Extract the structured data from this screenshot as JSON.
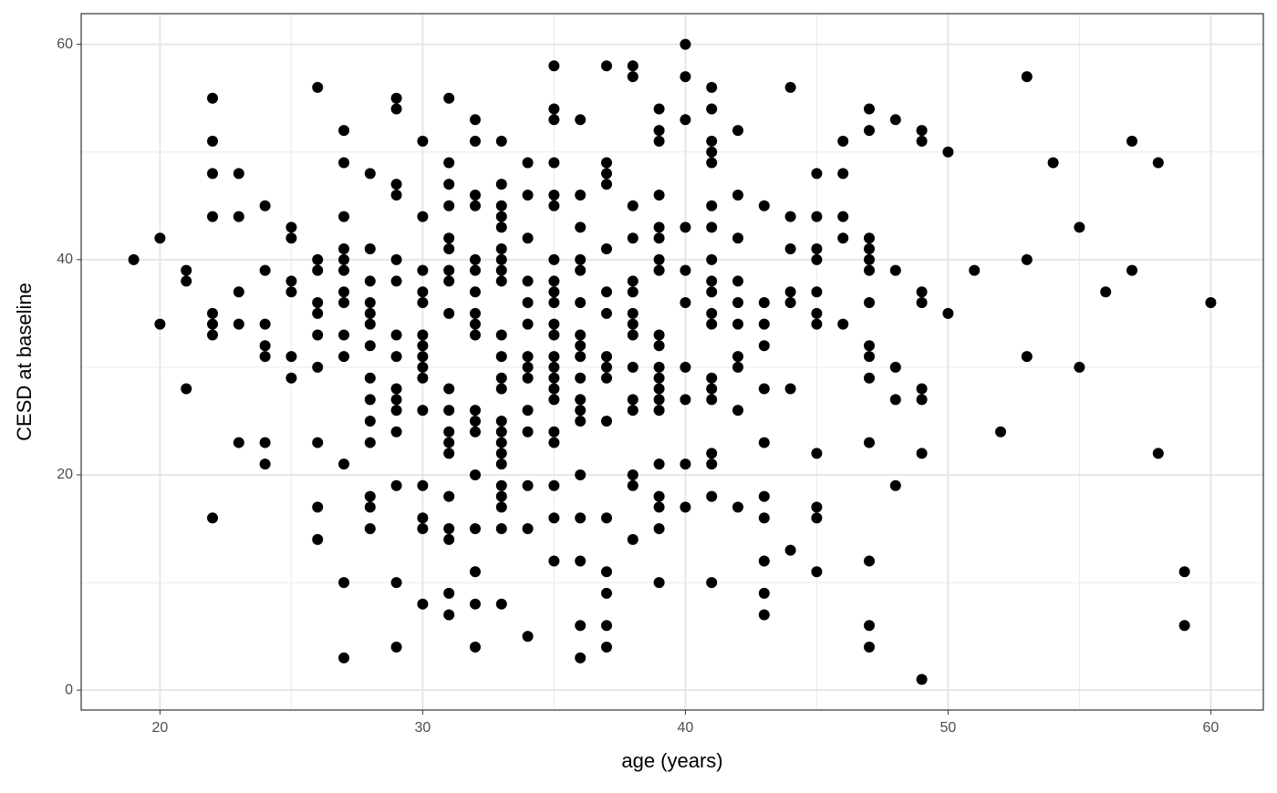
{
  "chart_data": {
    "type": "scatter",
    "x_label": "age (years)",
    "y_label": "CESD at baseline",
    "x": [
      19,
      20,
      20,
      21,
      21,
      21,
      22,
      22,
      22,
      22,
      22,
      22,
      22,
      22,
      23,
      23,
      23,
      23,
      23,
      24,
      24,
      24,
      24,
      24,
      24,
      24,
      25,
      25,
      25,
      25,
      25,
      25,
      26,
      26,
      26,
      26,
      26,
      26,
      26,
      26,
      26,
      26,
      27,
      27,
      27,
      27,
      27,
      27,
      27,
      27,
      27,
      27,
      27,
      27,
      27,
      28,
      28,
      28,
      28,
      28,
      28,
      28,
      28,
      28,
      28,
      28,
      28,
      28,
      28,
      29,
      29,
      29,
      29,
      29,
      29,
      29,
      29,
      29,
      29,
      29,
      29,
      29,
      29,
      29,
      30,
      30,
      30,
      30,
      30,
      30,
      30,
      30,
      30,
      30,
      30,
      30,
      30,
      30,
      30,
      31,
      31,
      31,
      31,
      31,
      31,
      31,
      31,
      31,
      31,
      31,
      31,
      31,
      31,
      31,
      31,
      31,
      31,
      31,
      32,
      32,
      32,
      32,
      32,
      32,
      32,
      32,
      32,
      32,
      32,
      32,
      32,
      32,
      32,
      32,
      32,
      32,
      33,
      33,
      33,
      33,
      33,
      33,
      33,
      33,
      33,
      33,
      33,
      33,
      33,
      33,
      33,
      33,
      33,
      33,
      33,
      33,
      33,
      33,
      33,
      34,
      34,
      34,
      34,
      34,
      34,
      34,
      34,
      34,
      34,
      34,
      34,
      34,
      34,
      35,
      35,
      35,
      35,
      35,
      35,
      35,
      35,
      35,
      35,
      35,
      35,
      35,
      35,
      35,
      35,
      35,
      35,
      35,
      35,
      35,
      35,
      36,
      36,
      36,
      36,
      36,
      36,
      36,
      36,
      36,
      36,
      36,
      36,
      36,
      36,
      36,
      36,
      36,
      36,
      37,
      37,
      37,
      37,
      37,
      37,
      37,
      37,
      37,
      37,
      37,
      37,
      37,
      37,
      37,
      37,
      38,
      38,
      38,
      38,
      38,
      38,
      38,
      38,
      38,
      38,
      38,
      38,
      38,
      38,
      38,
      39,
      39,
      39,
      39,
      39,
      39,
      39,
      39,
      39,
      39,
      39,
      39,
      39,
      39,
      39,
      39,
      39,
      39,
      39,
      39,
      40,
      40,
      40,
      40,
      40,
      40,
      40,
      40,
      40,
      40,
      41,
      41,
      41,
      41,
      41,
      41,
      41,
      41,
      41,
      41,
      41,
      41,
      41,
      41,
      41,
      41,
      41,
      41,
      41,
      42,
      42,
      42,
      42,
      42,
      42,
      42,
      42,
      42,
      42,
      43,
      43,
      43,
      43,
      43,
      43,
      43,
      43,
      43,
      43,
      43,
      44,
      44,
      44,
      44,
      44,
      44,
      44,
      45,
      45,
      45,
      45,
      45,
      45,
      45,
      45,
      45,
      45,
      45,
      46,
      46,
      46,
      46,
      46,
      47,
      47,
      47,
      47,
      47,
      47,
      47,
      47,
      47,
      47,
      47,
      47,
      47,
      47,
      48,
      48,
      48,
      48,
      48,
      49,
      49,
      49,
      49,
      49,
      49,
      49,
      49,
      50,
      50,
      51,
      52,
      53,
      53,
      53,
      54,
      55,
      55,
      56,
      57,
      57,
      58,
      58,
      59,
      59,
      60
    ],
    "values": [
      40,
      42,
      34,
      39,
      38,
      28,
      55,
      51,
      48,
      44,
      35,
      34,
      33,
      16,
      48,
      44,
      37,
      34,
      23,
      45,
      39,
      34,
      32,
      31,
      23,
      21,
      43,
      42,
      38,
      37,
      31,
      29,
      56,
      40,
      39,
      36,
      35,
      33,
      30,
      23,
      17,
      14,
      52,
      49,
      44,
      41,
      40,
      39,
      37,
      36,
      33,
      31,
      21,
      10,
      3,
      48,
      41,
      38,
      36,
      35,
      34,
      32,
      29,
      27,
      25,
      23,
      18,
      17,
      15,
      55,
      54,
      47,
      46,
      40,
      38,
      33,
      31,
      28,
      27,
      26,
      24,
      19,
      10,
      4,
      51,
      44,
      39,
      37,
      36,
      33,
      32,
      31,
      30,
      29,
      26,
      19,
      16,
      15,
      8,
      55,
      49,
      47,
      45,
      42,
      41,
      39,
      38,
      35,
      28,
      26,
      24,
      23,
      22,
      18,
      15,
      14,
      9,
      7,
      53,
      51,
      46,
      45,
      40,
      39,
      37,
      35,
      34,
      33,
      26,
      25,
      24,
      20,
      15,
      11,
      8,
      4,
      51,
      47,
      45,
      44,
      43,
      41,
      40,
      39,
      38,
      33,
      31,
      29,
      28,
      25,
      24,
      23,
      22,
      21,
      19,
      18,
      17,
      15,
      8,
      49,
      46,
      42,
      38,
      36,
      34,
      31,
      30,
      29,
      26,
      24,
      19,
      15,
      5,
      58,
      54,
      53,
      49,
      46,
      45,
      40,
      38,
      37,
      36,
      34,
      33,
      31,
      30,
      29,
      28,
      27,
      24,
      23,
      19,
      16,
      12,
      53,
      46,
      43,
      40,
      39,
      36,
      33,
      32,
      31,
      29,
      27,
      26,
      25,
      20,
      16,
      12,
      6,
      3,
      58,
      49,
      48,
      47,
      41,
      37,
      35,
      31,
      30,
      29,
      25,
      16,
      11,
      9,
      6,
      4,
      58,
      57,
      45,
      42,
      38,
      37,
      35,
      34,
      33,
      30,
      27,
      26,
      20,
      19,
      14,
      54,
      52,
      51,
      46,
      43,
      42,
      40,
      39,
      33,
      32,
      30,
      29,
      28,
      27,
      26,
      21,
      18,
      17,
      15,
      10,
      60,
      57,
      53,
      43,
      39,
      36,
      30,
      27,
      21,
      17,
      56,
      54,
      51,
      50,
      49,
      45,
      43,
      40,
      38,
      37,
      35,
      34,
      29,
      28,
      27,
      22,
      21,
      18,
      10,
      52,
      46,
      42,
      38,
      36,
      34,
      31,
      30,
      26,
      17,
      45,
      36,
      34,
      32,
      28,
      23,
      18,
      16,
      12,
      9,
      7,
      56,
      44,
      41,
      37,
      36,
      28,
      13,
      48,
      44,
      41,
      40,
      37,
      35,
      34,
      22,
      17,
      16,
      11,
      51,
      48,
      44,
      42,
      34,
      54,
      52,
      42,
      41,
      40,
      39,
      36,
      32,
      31,
      29,
      23,
      12,
      6,
      4,
      53,
      39,
      30,
      27,
      19,
      52,
      51,
      37,
      36,
      28,
      27,
      22,
      1,
      50,
      35,
      39,
      24,
      57,
      40,
      31,
      49,
      43,
      30,
      37,
      51,
      39,
      49,
      22,
      11,
      6,
      36
    ],
    "color": "#000000",
    "xlim": [
      17,
      62
    ],
    "ylim": [
      -1.85,
      62.85
    ],
    "xticks": [
      20,
      30,
      40,
      50,
      60
    ],
    "yticks": [
      0,
      20,
      40,
      60
    ],
    "grid": true
  }
}
